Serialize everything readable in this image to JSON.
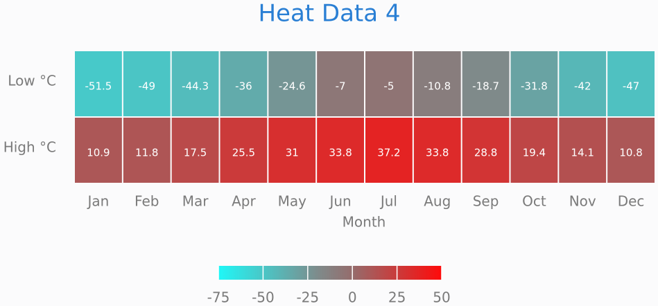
{
  "chart_data": {
    "type": "heatmap",
    "title": "Heat Data 4",
    "xlabel": "Month",
    "x": [
      "Jan",
      "Feb",
      "Mar",
      "Apr",
      "May",
      "Jun",
      "Jul",
      "Aug",
      "Sep",
      "Oct",
      "Nov",
      "Dec"
    ],
    "y": [
      "Low °C",
      "High °C"
    ],
    "z": [
      [
        -51.5,
        -49,
        -44.3,
        -36,
        -24.6,
        -7,
        -5,
        -10.8,
        -18.7,
        -31.8,
        -42,
        -47
      ],
      [
        10.9,
        11.8,
        17.5,
        25.5,
        31,
        33.8,
        37.2,
        33.8,
        28.8,
        19.4,
        14.1,
        10.8
      ]
    ],
    "colorscale": [
      [
        0,
        "#1ff7f7"
      ],
      [
        0.45,
        "#7f8a8a"
      ],
      [
        0.6,
        "#956c6c"
      ],
      [
        1,
        "#ff0a0a"
      ]
    ],
    "zlim": [
      -75,
      50
    ],
    "zticks": [
      -75,
      -50,
      -25,
      0,
      25,
      50
    ]
  }
}
